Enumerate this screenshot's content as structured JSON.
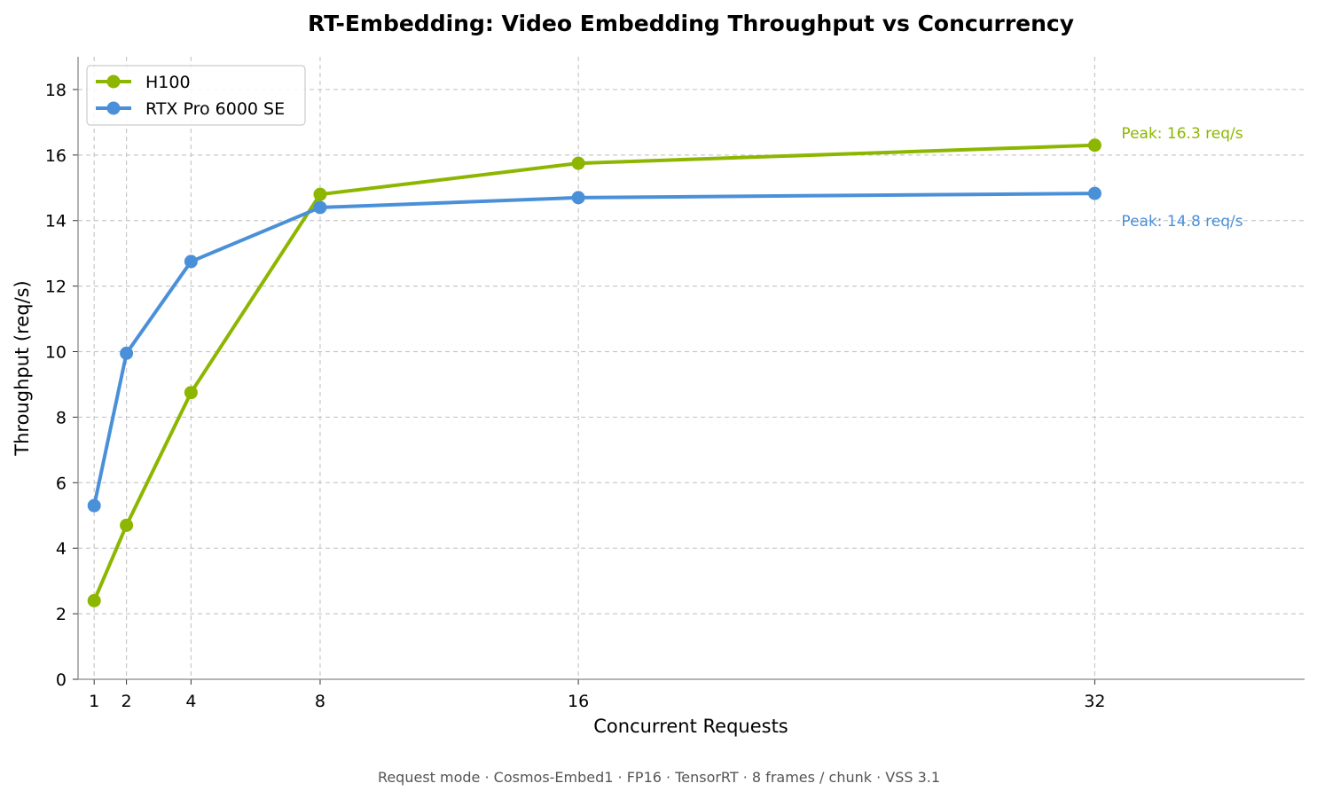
{
  "chart_data": {
    "type": "line",
    "title": "RT-Embedding: Video Embedding Throughput vs Concurrency",
    "xlabel": "Concurrent Requests",
    "ylabel": "Throughput (req/s)",
    "x": [
      1,
      2,
      4,
      8,
      16,
      32
    ],
    "x_tick_labels": [
      "1",
      "2",
      "4",
      "8",
      "16",
      "32"
    ],
    "xlim": [
      0.5,
      38.5
    ],
    "ylim": [
      0,
      19
    ],
    "y_ticks": [
      0,
      2,
      4,
      6,
      8,
      10,
      12,
      14,
      16,
      18
    ],
    "grid": true,
    "grid_style": "dashed",
    "legend_position": "top-left",
    "series": [
      {
        "name": "H100",
        "color": "#8db600",
        "values": [
          2.4,
          4.7,
          8.75,
          14.8,
          15.75,
          16.3
        ]
      },
      {
        "name": "RTX Pro 6000 SE",
        "color": "#4a90d9",
        "values": [
          5.3,
          9.95,
          12.75,
          14.4,
          14.7,
          14.83
        ]
      }
    ],
    "annotations": [
      {
        "text": "Peak: 16.3 req/s",
        "color": "#8db600",
        "series": "H100"
      },
      {
        "text": "Peak: 14.8 req/s",
        "color": "#4a90d9",
        "series": "RTX Pro 6000 SE"
      }
    ],
    "footer": "Request mode · Cosmos-Embed1 · FP16 · TensorRT · 8 frames / chunk · VSS 3.1"
  }
}
